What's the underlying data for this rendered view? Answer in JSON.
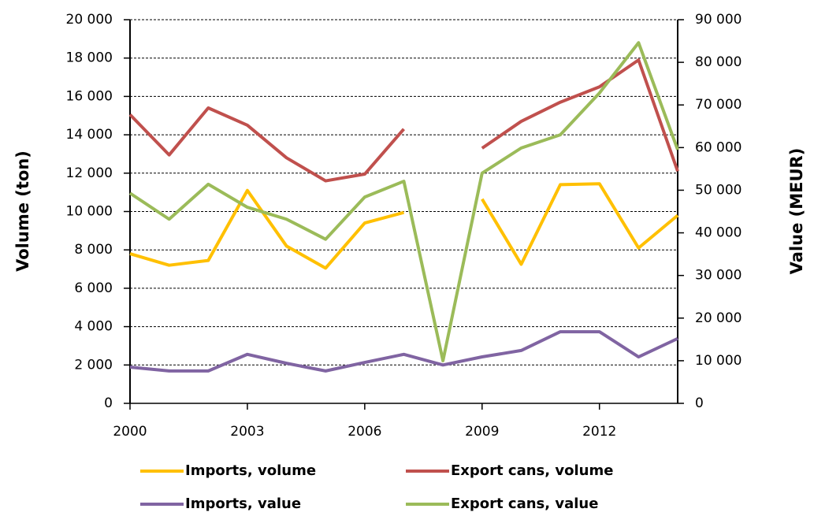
{
  "chart_data": {
    "type": "line",
    "x": [
      2000,
      2001,
      2002,
      2003,
      2004,
      2005,
      2006,
      2007,
      2008,
      2009,
      2010,
      2011,
      2012,
      2013,
      2014
    ],
    "xlim": [
      2000,
      2014
    ],
    "xticks": [
      2000,
      2003,
      2006,
      2009,
      2012
    ],
    "y_label": "Volume (ton)",
    "y2_label": "Value (MEUR)",
    "ylim": [
      0,
      20000
    ],
    "yticks": [
      0,
      {
        "value": 2000,
        "label": "2 000"
      },
      {
        "value": 4000,
        "label": "4 000"
      },
      {
        "value": 6000,
        "label": "6 000"
      },
      {
        "value": 8000,
        "label": "8 000"
      },
      {
        "value": 10000,
        "label": "10 000"
      },
      {
        "value": 12000,
        "label": "12 000"
      },
      {
        "value": 14000,
        "label": "14 000"
      },
      {
        "value": 16000,
        "label": "16 000"
      },
      {
        "value": 18000,
        "label": "18 000"
      },
      {
        "value": 20000,
        "label": "20 000"
      }
    ],
    "y2lim": [
      0,
      90000
    ],
    "y2ticks": [
      0,
      {
        "value": 10000,
        "label": "10 000"
      },
      {
        "value": 20000,
        "label": "20 000"
      },
      {
        "value": 30000,
        "label": "30 000"
      },
      {
        "value": 40000,
        "label": "40 000"
      },
      {
        "value": 50000,
        "label": "50 000"
      },
      {
        "value": 60000,
        "label": "60 000"
      },
      {
        "value": 70000,
        "label": "70 000"
      },
      {
        "value": 80000,
        "label": "80 000"
      },
      {
        "value": 90000,
        "label": "90 000"
      }
    ],
    "grid": true,
    "series": [
      {
        "name": "Imports, volume",
        "color": "#ffc000",
        "values": [
          7800,
          7200,
          7450,
          11100,
          8200,
          7050,
          9400,
          9950,
          null,
          10650,
          7250,
          11400,
          11450,
          8100,
          9800
        ]
      },
      {
        "name": "Export cans, volume",
        "color": "#c0504d",
        "values": [
          15050,
          12950,
          15400,
          14500,
          12800,
          11600,
          11950,
          14300,
          null,
          13300,
          14700,
          15700,
          16500,
          17900,
          12100
        ]
      },
      {
        "name": "Imports, value",
        "color": "#8064a2",
        "axis": "y2",
        "values": [
          8500,
          7600,
          7600,
          11500,
          9400,
          7600,
          9600,
          11500,
          9000,
          10900,
          12400,
          16800,
          16800,
          10900,
          15200
        ]
      },
      {
        "name": "Export cans, value",
        "color": "#9bbb59",
        "axis": "y2",
        "values": [
          49300,
          43200,
          51400,
          46000,
          43200,
          38500,
          48400,
          52100,
          10000,
          54000,
          59900,
          63000,
          72800,
          84600,
          59500
        ]
      }
    ]
  }
}
